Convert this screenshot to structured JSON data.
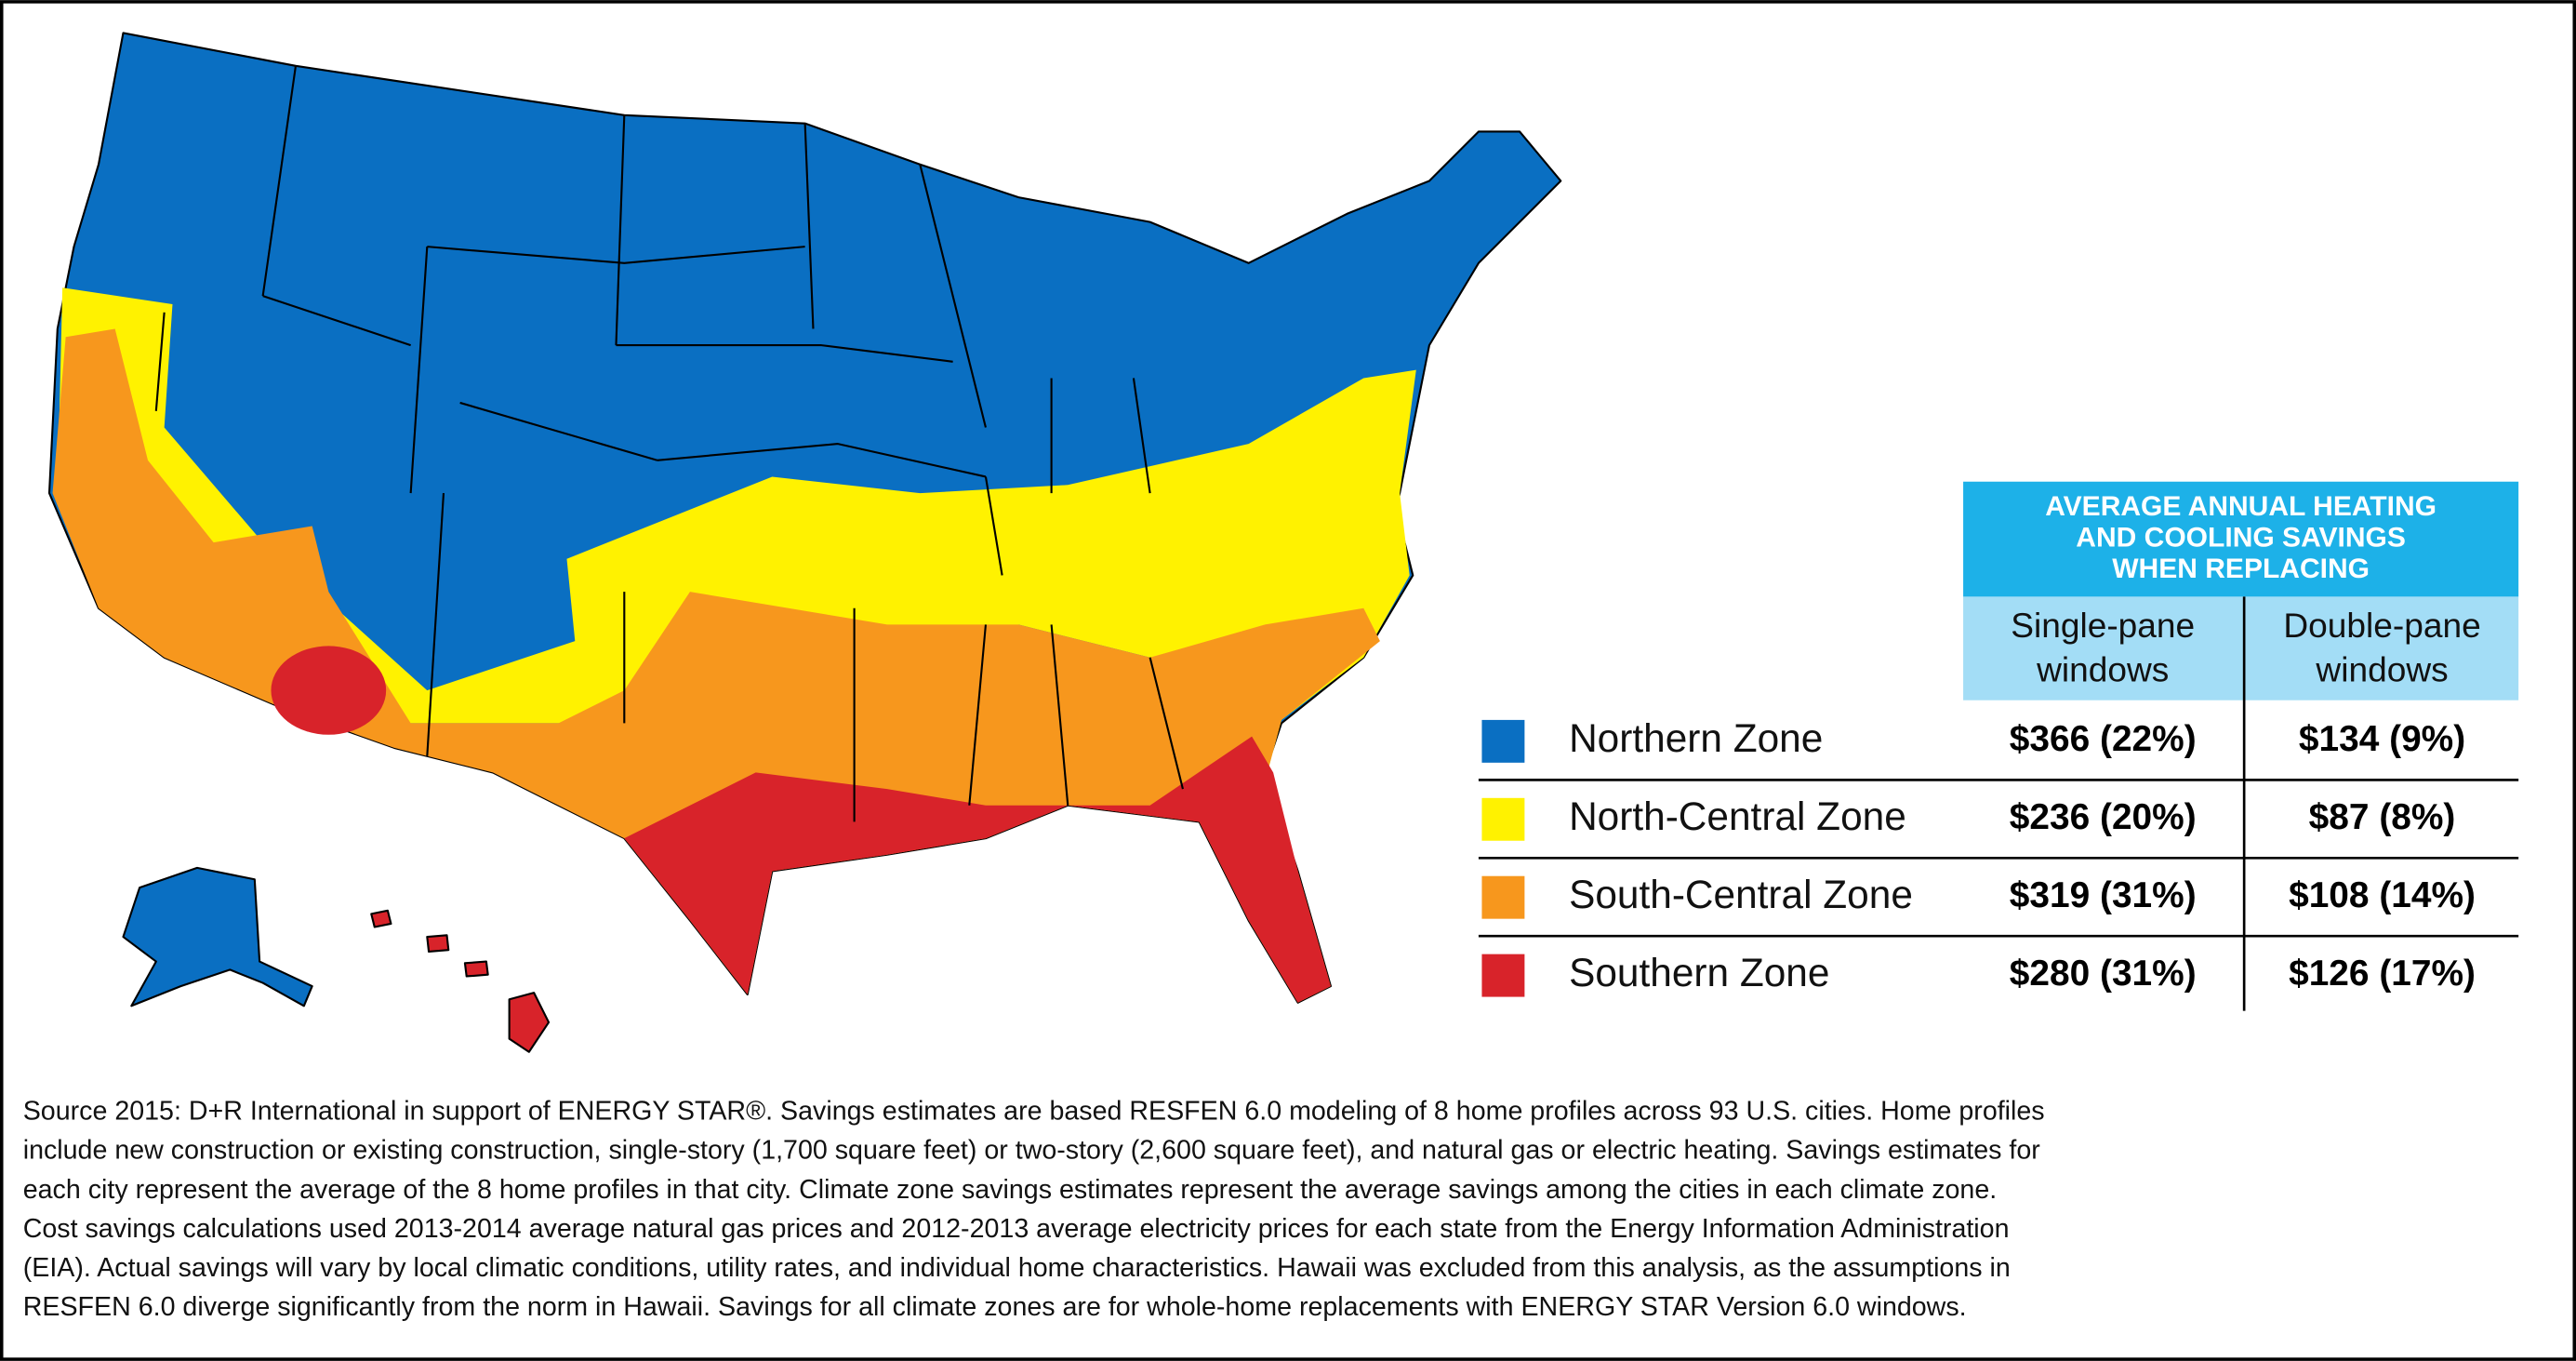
{
  "table": {
    "header": [
      "AVERAGE ANNUAL HEATING",
      "AND COOLING SAVINGS",
      "WHEN REPLACING"
    ],
    "columns": [
      [
        "Single-pane",
        "windows"
      ],
      [
        "Double-pane",
        "windows"
      ]
    ],
    "rows": [
      {
        "name": "Northern Zone",
        "color": "#0a6fc2",
        "single": "$366 (22%)",
        "double": "$134 (9%)"
      },
      {
        "name": "North-Central Zone",
        "color": "#fff200",
        "single": "$236 (20%)",
        "double": "$87 (8%)"
      },
      {
        "name": "South-Central Zone",
        "color": "#f7971d",
        "single": "$319 (31%)",
        "double": "$108 (14%)"
      },
      {
        "name": "Southern Zone",
        "color": "#d8232a",
        "single": "$280 (31%)",
        "double": "$126 (17%)"
      }
    ]
  },
  "source": {
    "lines": [
      "Source 2015: D+R International in support of ENERGY STAR®. Savings estimates are based RESFEN 6.0 modeling of 8 home profiles across 93 U.S. cities. Home profiles",
      "include new construction or existing construction, single-story (1,700 square feet) or two-story (2,600 square feet), and natural gas or electric heating. Savings estimates for",
      "each city represent the average of the 8 home profiles in that city. Climate zone savings estimates represent the average savings among the cities in each climate zone.",
      "Cost savings calculations used 2013-2014 average natural gas prices and 2012-2013 average electricity prices for each state from the Energy Information Administration",
      "(EIA). Actual savings will vary by local climatic conditions, utility rates, and individual home characteristics. Hawaii was excluded from this analysis, as the assumptions in",
      "RESFEN 6.0 diverge significantly from the norm in Hawaii. Savings for all climate zones are for whole-home replacements with ENERGY STAR Version 6.0 windows."
    ]
  }
}
